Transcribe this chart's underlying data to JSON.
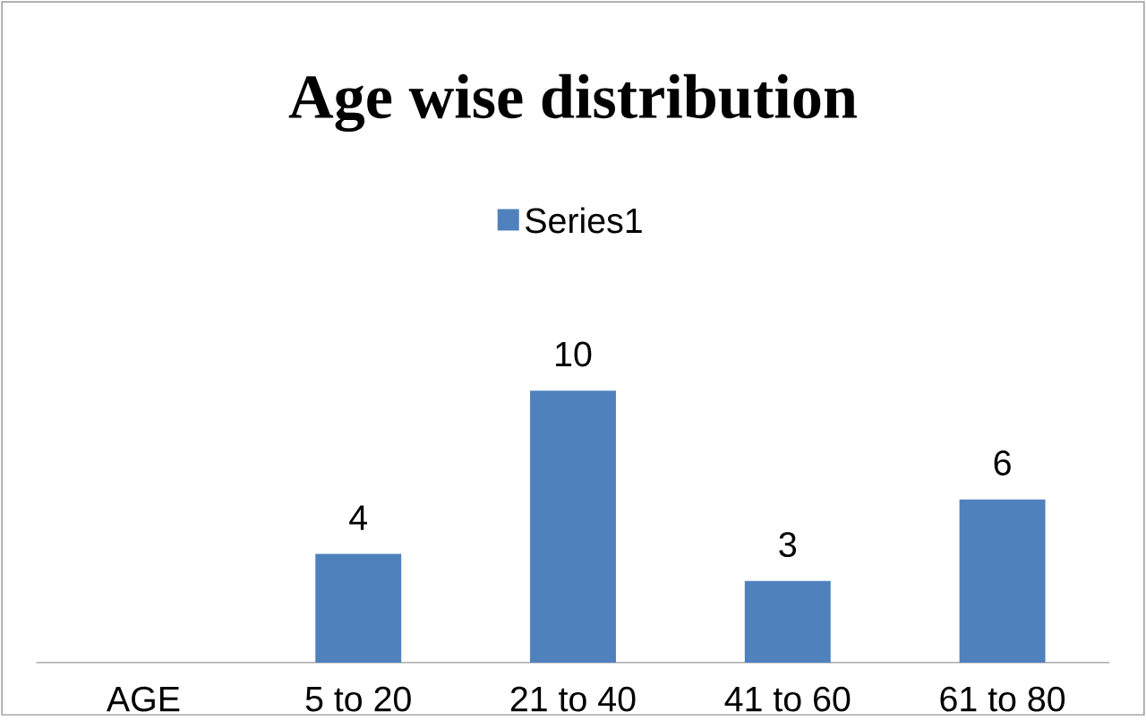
{
  "chart_data": {
    "type": "bar",
    "title": "Age wise distribution",
    "categories": [
      "AGE",
      "5 to 20",
      "21 to 40",
      "41 to 60",
      "61 to 80"
    ],
    "series": [
      {
        "name": "Series1",
        "color": "#4f81bd",
        "values": [
          null,
          4,
          10,
          3,
          6
        ]
      }
    ],
    "ylim": [
      0,
      10
    ],
    "tick_labels": "x",
    "data_labels": true,
    "legend": "top"
  }
}
